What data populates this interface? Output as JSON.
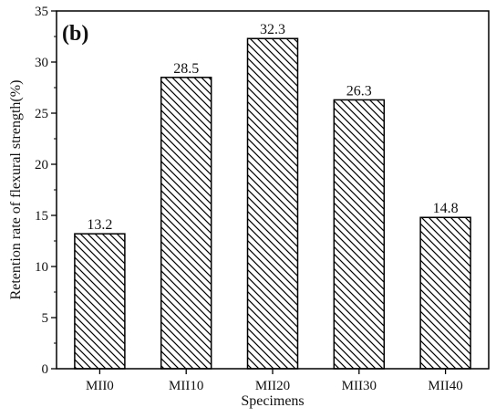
{
  "chart_data": {
    "type": "bar",
    "panel_label": "(b)",
    "title": "",
    "xlabel": "Specimens",
    "ylabel": "Retention rate of flexural strength(%)",
    "categories": [
      "MII0",
      "MII10",
      "MII20",
      "MII30",
      "MII40"
    ],
    "values": [
      13.2,
      28.5,
      32.3,
      26.3,
      14.8
    ],
    "data_labels": [
      "13.2",
      "28.5",
      "32.3",
      "26.3",
      "14.8"
    ],
    "ylim": [
      0,
      35
    ],
    "yticks": [
      0,
      5,
      10,
      15,
      20,
      25,
      30,
      35
    ],
    "ytick_labels": [
      "0",
      "5",
      "10",
      "15",
      "20",
      "25",
      "30",
      "35"
    ],
    "bar_fill": "hatched",
    "bar_color": "#000000",
    "grid": false,
    "legend": "none"
  }
}
